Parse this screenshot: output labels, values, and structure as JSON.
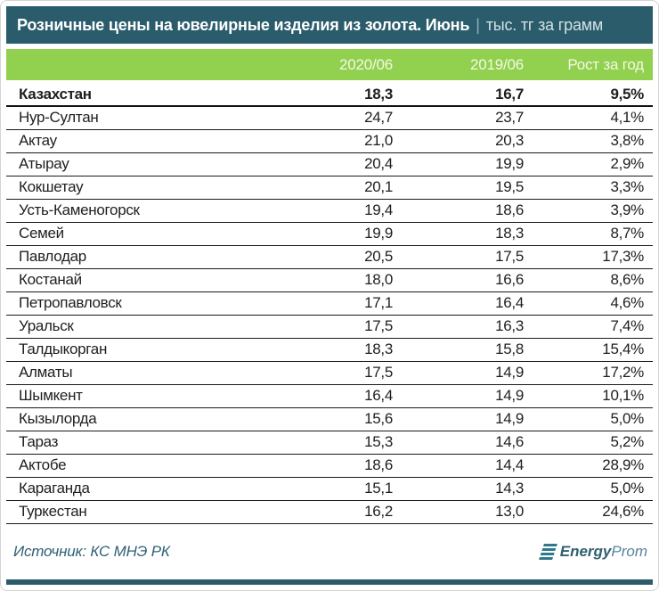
{
  "title": {
    "main": "Розничные цены на ювелирные изделия из золота. Июнь",
    "separator": "|",
    "unit": "тыс. тг за грамм"
  },
  "columns": {
    "col_2020": "2020/06",
    "col_2019": "2019/06",
    "col_growth": "Рост за год"
  },
  "table": {
    "rows": [
      {
        "city": "Казахстан",
        "v2020": "18,3",
        "v2019": "16,7",
        "growth": "9,5%"
      },
      {
        "city": "Нур-Султан",
        "v2020": "24,7",
        "v2019": "23,7",
        "growth": "4,1%"
      },
      {
        "city": "Актау",
        "v2020": "21,0",
        "v2019": "20,3",
        "growth": "3,8%"
      },
      {
        "city": "Атырау",
        "v2020": "20,4",
        "v2019": "19,9",
        "growth": "2,9%"
      },
      {
        "city": "Кокшетау",
        "v2020": "20,1",
        "v2019": "19,5",
        "growth": "3,3%"
      },
      {
        "city": "Усть-Каменогорск",
        "v2020": "19,4",
        "v2019": "18,6",
        "growth": "3,9%"
      },
      {
        "city": "Семей",
        "v2020": "19,9",
        "v2019": "18,3",
        "growth": "8,7%"
      },
      {
        "city": "Павлодар",
        "v2020": "20,5",
        "v2019": "17,5",
        "growth": "17,3%"
      },
      {
        "city": "Костанай",
        "v2020": "18,0",
        "v2019": "16,6",
        "growth": "8,6%"
      },
      {
        "city": "Петропавловск",
        "v2020": "17,1",
        "v2019": "16,4",
        "growth": "4,6%"
      },
      {
        "city": "Уральск",
        "v2020": "17,5",
        "v2019": "16,3",
        "growth": "7,4%"
      },
      {
        "city": "Талдыкорган",
        "v2020": "18,3",
        "v2019": "15,8",
        "growth": "15,4%"
      },
      {
        "city": "Алматы",
        "v2020": "17,5",
        "v2019": "14,9",
        "growth": "17,2%"
      },
      {
        "city": "Шымкент",
        "v2020": "16,4",
        "v2019": "14,9",
        "growth": "10,1%"
      },
      {
        "city": "Кызылорда",
        "v2020": "15,6",
        "v2019": "14,9",
        "growth": "5,0%"
      },
      {
        "city": "Тараз",
        "v2020": "15,3",
        "v2019": "14,6",
        "growth": "5,2%"
      },
      {
        "city": "Актобе",
        "v2020": "18,6",
        "v2019": "14,4",
        "growth": "28,9%"
      },
      {
        "city": "Караганда",
        "v2020": "15,1",
        "v2019": "14,3",
        "growth": "5,0%"
      },
      {
        "city": "Туркестан",
        "v2020": "16,2",
        "v2019": "13,0",
        "growth": "24,6%"
      }
    ]
  },
  "footer": {
    "source": "Источник: КС МНЭ РК",
    "logo_bold": "Energy",
    "logo_light": "Prom"
  },
  "colors": {
    "header_teal": "#2b5c6c",
    "header_green": "#92d050",
    "row_border": "#1a1a1a",
    "source_text": "#2f6175",
    "logo_teal": "#2e7a8c"
  },
  "chart_data": {
    "type": "table",
    "title": "Розничные цены на ювелирные изделия из золота. Июнь (тыс. тг за грамм)",
    "categories": [
      "Казахстан",
      "Нур-Султан",
      "Актау",
      "Атырау",
      "Кокшетау",
      "Усть-Каменогорск",
      "Семей",
      "Павлодар",
      "Костанай",
      "Петропавловск",
      "Уральск",
      "Талдыкорган",
      "Алматы",
      "Шымкент",
      "Кызылорда",
      "Тараз",
      "Актобе",
      "Караганда",
      "Туркестан"
    ],
    "series": [
      {
        "name": "2020/06",
        "values": [
          18.3,
          24.7,
          21.0,
          20.4,
          20.1,
          19.4,
          19.9,
          20.5,
          18.0,
          17.1,
          17.5,
          18.3,
          17.5,
          16.4,
          15.6,
          15.3,
          18.6,
          15.1,
          16.2
        ]
      },
      {
        "name": "2019/06",
        "values": [
          16.7,
          23.7,
          20.3,
          19.9,
          19.5,
          18.6,
          18.3,
          17.5,
          16.6,
          16.4,
          16.3,
          15.8,
          14.9,
          14.9,
          14.9,
          14.6,
          14.4,
          14.3,
          13.0
        ]
      },
      {
        "name": "Рост за год, %",
        "values": [
          9.5,
          4.1,
          3.8,
          2.9,
          3.3,
          3.9,
          8.7,
          17.3,
          8.6,
          4.6,
          7.4,
          15.4,
          17.2,
          10.1,
          5.0,
          5.2,
          28.9,
          5.0,
          24.6
        ]
      }
    ]
  }
}
